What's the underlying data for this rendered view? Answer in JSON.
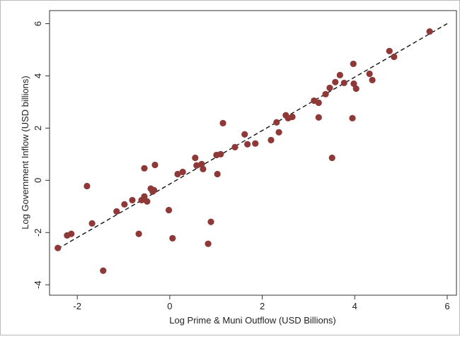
{
  "chart_data": {
    "type": "scatter",
    "x_label": "Log Prime & Muni Outflow (USD Billions)",
    "y_label": "Log Government Inflow (USD billions)",
    "xlim": [
      -2.6,
      6.2
    ],
    "ylim": [
      -4.4,
      6.5
    ],
    "xticks": [
      -2,
      0,
      2,
      4,
      6
    ],
    "yticks": [
      -4,
      -2,
      0,
      2,
      4,
      6
    ],
    "grid": false,
    "series": [
      {
        "color": "#8e3838",
        "x": [
          -2.42,
          -2.22,
          -2.13,
          -1.79,
          -1.68,
          -1.44,
          -1.15,
          -0.98,
          -0.81,
          -0.67,
          -0.61,
          -0.55,
          -0.55,
          -0.49,
          -0.41,
          -0.37,
          -0.32,
          -0.34,
          -0.02,
          0.06,
          0.17,
          0.28,
          0.55,
          0.58,
          0.69,
          0.72,
          0.83,
          0.89,
          1.01,
          1.03,
          1.1,
          1.15,
          1.41,
          1.62,
          1.68,
          1.85,
          2.19,
          2.31,
          2.36,
          2.51,
          2.56,
          2.65,
          3.12,
          3.22,
          3.22,
          3.37,
          3.46,
          3.51,
          3.58,
          3.68,
          3.77,
          3.95,
          3.97,
          3.98,
          4.03,
          4.32,
          4.38,
          4.75,
          4.85,
          5.62
        ],
        "values": [
          -2.59,
          -2.11,
          -2.05,
          -0.22,
          -1.65,
          -3.46,
          -1.19,
          -0.92,
          -0.76,
          -2.05,
          -0.76,
          -0.62,
          0.46,
          -0.81,
          -0.32,
          -0.43,
          0.59,
          -0.38,
          -1.14,
          -2.22,
          0.24,
          0.32,
          0.86,
          0.57,
          0.62,
          0.43,
          -2.43,
          -1.59,
          0.97,
          0.24,
          1.0,
          2.19,
          1.27,
          1.76,
          1.38,
          1.41,
          1.54,
          2.22,
          1.84,
          2.49,
          2.38,
          2.43,
          3.05,
          2.97,
          2.41,
          3.3,
          3.54,
          0.86,
          3.76,
          4.03,
          3.73,
          2.38,
          4.46,
          3.7,
          3.51,
          4.08,
          3.84,
          4.95,
          4.73,
          5.7
        ]
      }
    ],
    "fit_line": {
      "color": "#111111",
      "x": [
        -2.42,
        6.0
      ],
      "values": [
        -2.62,
        6.0
      ]
    }
  }
}
